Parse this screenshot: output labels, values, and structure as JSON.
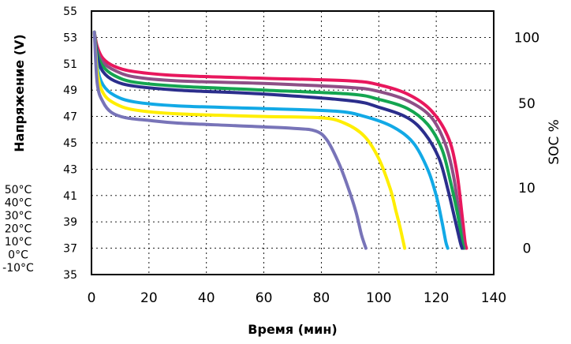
{
  "chart_data": {
    "type": "line",
    "xlabel": "Время (мин)",
    "ylabel": "Напряжение (V)",
    "y2label": "SOC %",
    "xlim": [
      0,
      140
    ],
    "ylim": [
      35,
      55
    ],
    "x_ticks": [
      "0",
      "20",
      "40",
      "60",
      "80",
      "100",
      "120",
      "140"
    ],
    "y_ticks": [
      "35",
      "37",
      "39",
      "41",
      "43",
      "45",
      "47",
      "49",
      "51",
      "53",
      "55"
    ],
    "soc_ticks": [
      {
        "label": "100",
        "at_voltage": 53.0
      },
      {
        "label": "50",
        "at_voltage": 48.0
      },
      {
        "label": "10",
        "at_voltage": 41.6
      },
      {
        "label": "0",
        "at_voltage": 37.0
      }
    ],
    "grid": true,
    "temperature_labels": [
      "50°C",
      "40°C",
      "30°C",
      "20°C",
      "10°C",
      "0°C",
      "-10°C"
    ],
    "series": [
      {
        "name": "50°C",
        "color": "#e8175d",
        "x": [
          1,
          2,
          4,
          8,
          15,
          30,
          60,
          90,
          100,
          110,
          118,
          124,
          127,
          129,
          130,
          130.5
        ],
        "y": [
          53.4,
          52.3,
          51.4,
          50.8,
          50.4,
          50.1,
          49.9,
          49.7,
          49.4,
          48.7,
          47.5,
          45.5,
          43.0,
          39.5,
          37.5,
          37.0
        ]
      },
      {
        "name": "40°C",
        "color": "#8e4f86",
        "x": [
          1,
          2,
          4,
          8,
          15,
          30,
          60,
          90,
          100,
          110,
          118,
          123,
          126,
          128,
          129.3,
          129.8
        ],
        "y": [
          53.4,
          52.0,
          51.1,
          50.5,
          50.0,
          49.7,
          49.5,
          49.2,
          48.9,
          48.2,
          47.0,
          45.0,
          42.5,
          39.5,
          37.5,
          37.0
        ]
      },
      {
        "name": "30°C",
        "color": "#14a550",
        "x": [
          1,
          2,
          4,
          8,
          15,
          30,
          60,
          90,
          100,
          110,
          117,
          122,
          125,
          127.5,
          129,
          129.5
        ],
        "y": [
          53.4,
          51.8,
          50.8,
          50.1,
          49.6,
          49.3,
          49.0,
          48.7,
          48.3,
          47.6,
          46.4,
          44.5,
          42.0,
          39.5,
          37.5,
          37.0
        ]
      },
      {
        "name": "20°C",
        "color": "#2b2e8c",
        "x": [
          1,
          2,
          4,
          8,
          15,
          30,
          60,
          90,
          100,
          110,
          116,
          121,
          124,
          126.5,
          128.3,
          129
        ],
        "y": [
          53.4,
          51.5,
          50.4,
          49.7,
          49.3,
          49.0,
          48.7,
          48.2,
          47.7,
          46.9,
          45.7,
          43.8,
          41.5,
          39.2,
          37.5,
          37.0
        ]
      },
      {
        "name": "10°C",
        "color": "#12a9e6",
        "x": [
          1,
          2,
          4,
          8,
          15,
          30,
          60,
          85,
          95,
          105,
          112,
          117,
          120,
          122,
          123.3,
          124
        ],
        "y": [
          53.4,
          50.8,
          49.4,
          48.6,
          48.1,
          47.8,
          47.6,
          47.4,
          47.0,
          46.2,
          45.0,
          43.0,
          41.0,
          39.0,
          37.5,
          37.0
        ]
      },
      {
        "name": "0°C",
        "color": "#ffee00",
        "x": [
          1,
          2,
          4,
          8,
          15,
          30,
          60,
          80,
          88,
          95,
          100,
          104,
          106,
          107.5,
          108.5,
          109
        ],
        "y": [
          53.4,
          50.4,
          48.8,
          48.0,
          47.5,
          47.2,
          47.0,
          46.9,
          46.5,
          45.5,
          43.8,
          41.5,
          39.8,
          38.5,
          37.5,
          37.0
        ]
      },
      {
        "name": "-10°C",
        "color": "#7874b8",
        "x": [
          1,
          2,
          4,
          7,
          12,
          20,
          30,
          50,
          70,
          78,
          82,
          86,
          89,
          92,
          94,
          95.5
        ],
        "y": [
          53.4,
          49.5,
          48.1,
          47.3,
          46.9,
          46.7,
          46.5,
          46.3,
          46.1,
          45.9,
          45.2,
          43.5,
          41.8,
          39.8,
          38.0,
          37.0
        ]
      }
    ]
  }
}
